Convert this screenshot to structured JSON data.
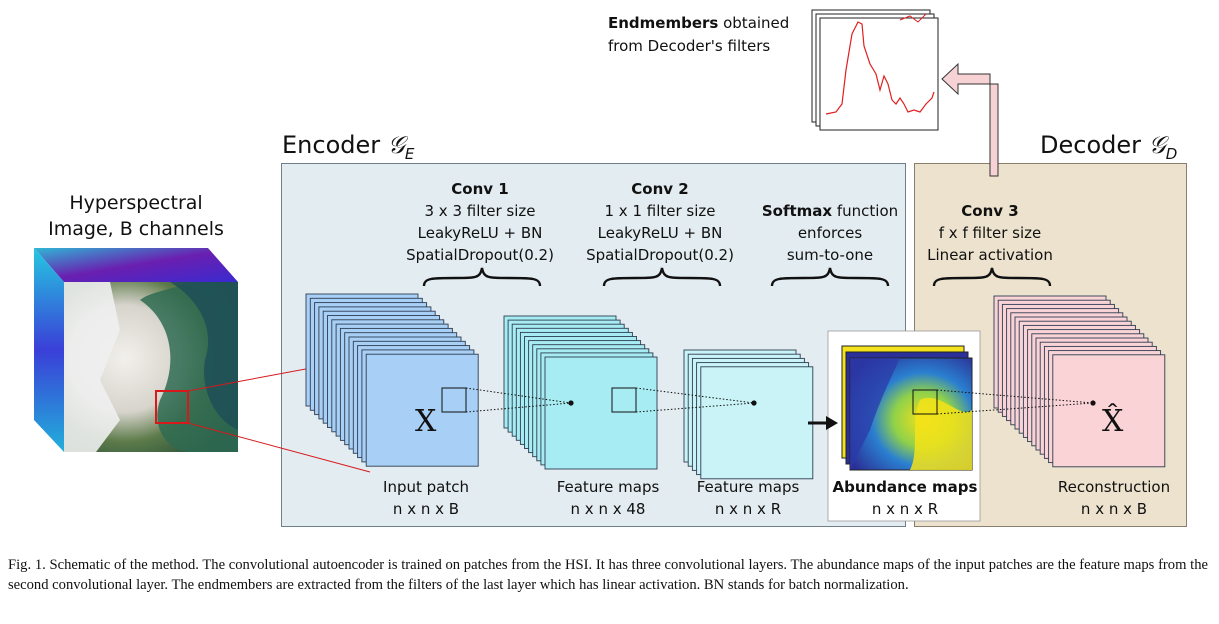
{
  "hsi": {
    "title_line1": "Hyperspectral",
    "title_line2": "Image, B channels"
  },
  "encoder": {
    "title": "Encoder",
    "symbol": "𝒢",
    "subscript": "E"
  },
  "decoder": {
    "title": "Decoder",
    "symbol": "𝒢",
    "subscript": "D"
  },
  "endmembers": {
    "bold": "Endmembers",
    "rest": " obtained",
    "line2": "from Decoder's filters"
  },
  "conv1": {
    "title": "Conv 1",
    "line1": "3 x 3 filter size",
    "line2": "LeakyReLU + BN",
    "line3": "SpatialDropout(0.2)"
  },
  "conv2": {
    "title": "Conv  2",
    "line1": "1 x 1 filter size",
    "line2": "LeakyReLU + BN",
    "line3": "SpatialDropout(0.2)"
  },
  "softmax": {
    "bold": "Softmax",
    "rest": " function",
    "line2": "enforces",
    "line3": "sum-to-one"
  },
  "conv3": {
    "title": "Conv 3",
    "line1": "f x f filter size",
    "line2": "Linear activation"
  },
  "blocks": {
    "input": {
      "symbol": "X",
      "label": "Input patch",
      "dims": "n x n x B"
    },
    "fm1": {
      "label": "Feature maps",
      "dims": "n x n x 48"
    },
    "fm2": {
      "label": "Feature maps",
      "dims": "n x n x R"
    },
    "abund": {
      "label": "Abundance maps",
      "dims": "n x n x R"
    },
    "recon": {
      "symbol": "X̂",
      "label": "Reconstruction",
      "dims": "n x n x B"
    }
  },
  "colors": {
    "input": "#a8cff5",
    "fm1": "#a6ecf2",
    "fm2": "#c9f3f7",
    "recon": "#f9d3d6",
    "encoder_bg": "#e3ecf1",
    "decoder_bg": "#ece2cd",
    "red": "#d7191c"
  },
  "caption": "Fig. 1.   Schematic of the method. The convolutional autoencoder is trained on patches from the HSI. It has three convolutional layers. The abundance maps of the input patches are the feature maps from the second convolutional layer. The endmembers are extracted from the filters of the last layer which has linear activation. BN stands for batch normalization."
}
